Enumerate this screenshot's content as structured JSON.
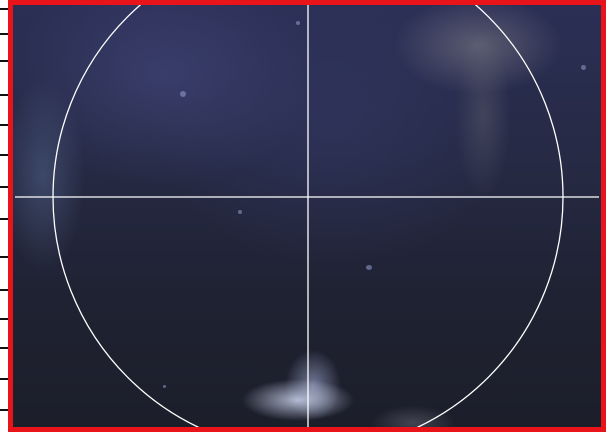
{
  "viewport": {
    "frame_color": "#e8141a",
    "overlay_color": "#ffffff",
    "overlay": [
      "crosshair",
      "reticle-circle"
    ]
  },
  "icons": {
    "reticle": "crosshair-reticle-icon"
  }
}
